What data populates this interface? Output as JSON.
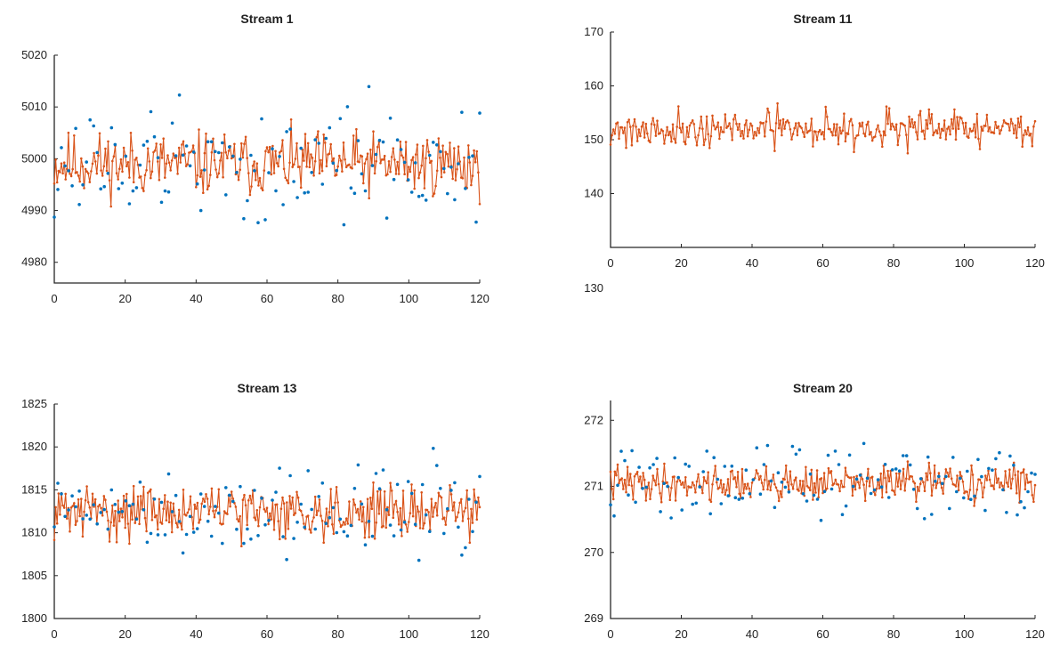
{
  "chart_data": [
    {
      "type": "scatter",
      "title": "Stream 1",
      "xlim": [
        0,
        120
      ],
      "ylim": [
        4976,
        5020
      ],
      "xticks": [
        "0",
        "20",
        "40",
        "60",
        "80",
        "100",
        "120"
      ],
      "yticks": [
        4980,
        4990,
        5000,
        5010,
        5020
      ],
      "series": [
        {
          "style": "line-with-markers",
          "color": "#D95319",
          "n_points": 301,
          "approx_center": 4999,
          "approx_spread": 9,
          "seed": 11
        },
        {
          "style": "markers",
          "color": "#0072BD",
          "n_points": 120,
          "approx_center": 4999,
          "approx_spread": 18,
          "seed": 12
        }
      ]
    },
    {
      "type": "line",
      "title": "Stream 11",
      "xlim": [
        0,
        120
      ],
      "ylim": [
        130,
        170
      ],
      "xticks": [
        "0",
        "20",
        "40",
        "60",
        "80",
        "100",
        "120"
      ],
      "yticks": [
        140,
        150,
        160,
        170
      ],
      "extra_tick_label": "130",
      "series": [
        {
          "style": "line-with-markers",
          "color": "#D95319",
          "n_points": 301,
          "approx_center": 152,
          "approx_spread": 5,
          "seed": 21
        }
      ]
    },
    {
      "type": "scatter",
      "title": "Stream 13",
      "xlim": [
        0,
        120
      ],
      "ylim": [
        1800,
        1825
      ],
      "xticks": [
        "0",
        "20",
        "40",
        "60",
        "80",
        "100",
        "120"
      ],
      "yticks": [
        1800,
        1805,
        1810,
        1815,
        1820,
        1825
      ],
      "series": [
        {
          "style": "line-with-markers",
          "color": "#D95319",
          "n_points": 301,
          "approx_center": 1812.5,
          "approx_spread": 4.5,
          "seed": 31
        },
        {
          "style": "markers",
          "color": "#0072BD",
          "n_points": 120,
          "approx_center": 1812.5,
          "approx_spread": 8,
          "seed": 32
        }
      ]
    },
    {
      "type": "scatter",
      "title": "Stream 20",
      "xlim": [
        0,
        120
      ],
      "ylim": [
        269,
        272.3
      ],
      "xticks": [
        "0",
        "20",
        "40",
        "60",
        "80",
        "100",
        "120"
      ],
      "yticks": [
        269,
        270,
        271,
        272
      ],
      "series": [
        {
          "style": "line-with-markers",
          "color": "#D95319",
          "n_points": 301,
          "approx_center": 271.05,
          "approx_spread": 0.4,
          "seed": 41
        },
        {
          "style": "markers",
          "color": "#0072BD",
          "n_points": 120,
          "approx_center": 271.05,
          "approx_spread": 0.85,
          "seed": 42
        }
      ]
    }
  ]
}
